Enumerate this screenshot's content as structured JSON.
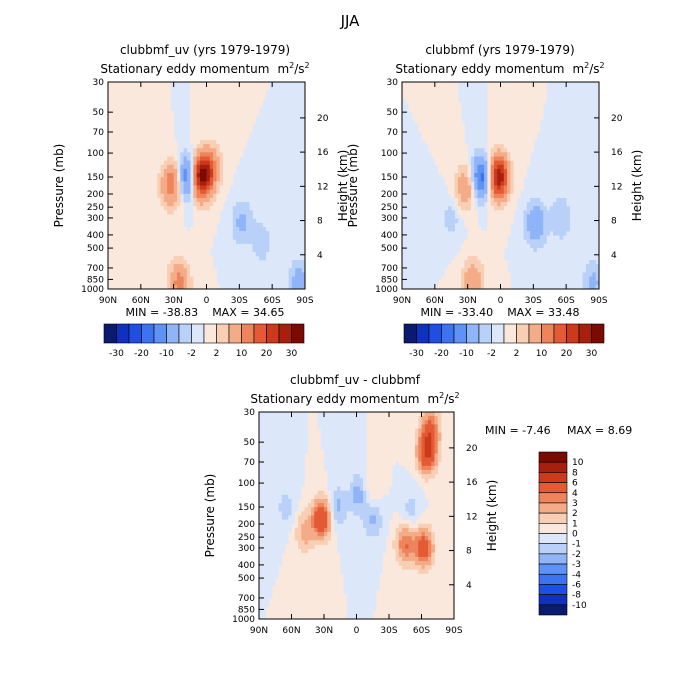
{
  "figure_title": "JJA",
  "chart_data": [
    {
      "type": "heatmap",
      "title": "clubbmf_uv (yrs 1979-1979)",
      "subtitle": "Stationary eddy momentum",
      "units_base": "m",
      "units_sup1": "2",
      "units_mid": "/s",
      "units_sup2": "2",
      "xlabel": "",
      "ylabel": "Pressure (mb)",
      "y2label": "Height (km)",
      "x_ticks": [
        "90N",
        "60N",
        "30N",
        "0",
        "30S",
        "60S",
        "90S"
      ],
      "x_values": [
        90,
        60,
        30,
        0,
        -30,
        -60,
        -90
      ],
      "y_ticks": [
        "30",
        "50",
        "70",
        "100",
        "150",
        "200",
        "250",
        "300",
        "400",
        "500",
        "700",
        "850",
        "1000"
      ],
      "y_values": [
        30,
        50,
        70,
        100,
        150,
        200,
        250,
        300,
        400,
        500,
        700,
        850,
        1000
      ],
      "y2_ticks": [
        "20",
        "16",
        "12",
        "8",
        "4"
      ],
      "y2_values": [
        20,
        16,
        12,
        8,
        4
      ],
      "ylim": [
        30,
        1000
      ],
      "xlim": [
        90,
        -90
      ],
      "min_label": "MIN = -38.83",
      "max_label": "MAX = 34.65",
      "min": -38.83,
      "max": 34.65,
      "features": [
        {
          "lat": 5,
          "p": 150,
          "amp": 30
        },
        {
          "lat": -3,
          "p": 130,
          "amp": 12
        },
        {
          "lat": 32,
          "p": 170,
          "amp": 14
        },
        {
          "lat": 17,
          "p": 150,
          "amp": -16
        },
        {
          "lat": -32,
          "p": 320,
          "amp": -6
        },
        {
          "lat": -50,
          "p": 450,
          "amp": -4
        },
        {
          "lat": 25,
          "p": 900,
          "amp": 12
        },
        {
          "lat": -85,
          "p": 900,
          "amp": -8
        }
      ]
    },
    {
      "type": "heatmap",
      "title": "clubbmf (yrs 1979-1979)",
      "subtitle": "Stationary eddy momentum",
      "units_base": "m",
      "units_sup1": "2",
      "units_mid": "/s",
      "units_sup2": "2",
      "xlabel": "",
      "ylabel": "Pressure (mb)",
      "y2label": "Height (km)",
      "x_ticks": [
        "90N",
        "60N",
        "30N",
        "0",
        "30S",
        "60S",
        "90S"
      ],
      "x_values": [
        90,
        60,
        30,
        0,
        -30,
        -60,
        -90
      ],
      "y_ticks": [
        "30",
        "50",
        "70",
        "100",
        "150",
        "200",
        "250",
        "300",
        "400",
        "500",
        "700",
        "850",
        "1000"
      ],
      "y_values": [
        30,
        50,
        70,
        100,
        150,
        200,
        250,
        300,
        400,
        500,
        700,
        850,
        1000
      ],
      "y2_ticks": [
        "20",
        "16",
        "12",
        "8",
        "4"
      ],
      "y2_values": [
        20,
        16,
        12,
        8,
        4
      ],
      "ylim": [
        30,
        1000
      ],
      "xlim": [
        90,
        -90
      ],
      "min_label": "MIN = -33.40",
      "max_label": "MAX = 33.48",
      "min": -33.4,
      "max": 33.48,
      "features": [
        {
          "lat": 2,
          "p": 150,
          "amp": 30
        },
        {
          "lat": 32,
          "p": 180,
          "amp": 9
        },
        {
          "lat": 17,
          "p": 150,
          "amp": -18
        },
        {
          "lat": -32,
          "p": 330,
          "amp": -10
        },
        {
          "lat": -55,
          "p": 300,
          "amp": -5
        },
        {
          "lat": 45,
          "p": 300,
          "amp": -3
        },
        {
          "lat": 25,
          "p": 900,
          "amp": 10
        },
        {
          "lat": -85,
          "p": 900,
          "amp": -6
        }
      ]
    },
    {
      "type": "heatmap",
      "title": "clubbmf_uv - clubbmf",
      "subtitle": "Stationary eddy momentum",
      "units_base": "m",
      "units_sup1": "2",
      "units_mid": "/s",
      "units_sup2": "2",
      "xlabel": "",
      "ylabel": "Pressure (mb)",
      "y2label": "Height (km)",
      "x_ticks": [
        "90N",
        "60N",
        "30N",
        "0",
        "30S",
        "60S",
        "90S"
      ],
      "x_values": [
        90,
        60,
        30,
        0,
        -30,
        -60,
        -90
      ],
      "y_ticks": [
        "30",
        "50",
        "70",
        "100",
        "150",
        "200",
        "250",
        "300",
        "400",
        "500",
        "700",
        "850",
        "1000"
      ],
      "y_values": [
        30,
        50,
        70,
        100,
        150,
        200,
        250,
        300,
        400,
        500,
        700,
        850,
        1000
      ],
      "y2_ticks": [
        "20",
        "16",
        "12",
        "8",
        "4"
      ],
      "y2_values": [
        20,
        16,
        12,
        8,
        4
      ],
      "ylim": [
        30,
        1000
      ],
      "xlim": [
        90,
        -90
      ],
      "min_label": "MIN = -7.46",
      "max_label": "MAX = 8.69",
      "min": -7.46,
      "max": 8.69,
      "features": [
        {
          "lat": 32,
          "p": 180,
          "amp": 6
        },
        {
          "lat": -45,
          "p": 280,
          "amp": 4
        },
        {
          "lat": -62,
          "p": 300,
          "amp": 5
        },
        {
          "lat": -65,
          "p": 60,
          "amp": 6
        },
        {
          "lat": -68,
          "p": 40,
          "amp": 4
        },
        {
          "lat": 48,
          "p": 230,
          "amp": 2.5
        },
        {
          "lat": -3,
          "p": 120,
          "amp": -3
        },
        {
          "lat": 18,
          "p": 150,
          "amp": -2.5
        },
        {
          "lat": -15,
          "p": 180,
          "amp": -2.5
        },
        {
          "lat": -12,
          "p": 120,
          "amp": 2
        },
        {
          "lat": -50,
          "p": 160,
          "amp": -1.5
        },
        {
          "lat": 65,
          "p": 150,
          "amp": -1.5
        }
      ]
    }
  ],
  "colorbars": {
    "panels": {
      "labels": [
        "-30",
        "-20",
        "-10",
        "-2",
        "2",
        "10",
        "20",
        "30"
      ],
      "colors": [
        "#0a1a6e",
        "#1030c0",
        "#1f4fe0",
        "#3c73f0",
        "#5f92f5",
        "#8fb4f7",
        "#b9d1f8",
        "#dce8fa",
        "#fbe8dc",
        "#f8cfb4",
        "#f4ab87",
        "#ee845c",
        "#e45a34",
        "#cc3a1c",
        "#a81f0e",
        "#7a0a02"
      ]
    },
    "difference": {
      "labels": [
        "10",
        "8",
        "6",
        "4",
        "3",
        "2",
        "1",
        "0",
        "-1",
        "-2",
        "-3",
        "-4",
        "-6",
        "-8",
        "-10"
      ],
      "colors": [
        "#7a0a02",
        "#a81f0e",
        "#cc3a1c",
        "#e45a34",
        "#ee845c",
        "#f4ab87",
        "#f8cfb4",
        "#fbe8dc",
        "#dce8fa",
        "#b9d1f8",
        "#8fb4f7",
        "#5f92f5",
        "#3c73f0",
        "#1f4fe0",
        "#1030c0",
        "#0a1a6e"
      ]
    }
  }
}
